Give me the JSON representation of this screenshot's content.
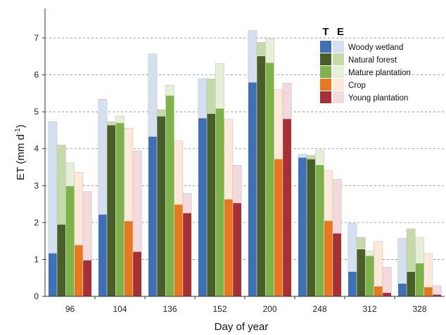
{
  "chart_data": {
    "type": "bar",
    "xlabel": "Day of year",
    "ylabel": "ET (mm d",
    "ylabel_sup": "-1",
    "ylabel_close": ")",
    "ylim": [
      0,
      7.8
    ],
    "yticks": [
      "0",
      "1",
      "2",
      "3",
      "4",
      "5",
      "6",
      "7"
    ],
    "grid": "horizontal dashed",
    "legend_position": "top-right",
    "legend_heads": [
      "T",
      "E"
    ],
    "categories": [
      "96",
      "104",
      "136",
      "152",
      "200",
      "248",
      "312",
      "328"
    ],
    "series": [
      {
        "name": "Woody wetland",
        "colors": {
          "T": "#3f6fb5",
          "E": "#d4e0f0"
        },
        "T": [
          1.17,
          2.22,
          4.33,
          4.83,
          5.8,
          3.76,
          0.67,
          0.35
        ],
        "total": [
          4.73,
          5.34,
          6.57,
          5.9,
          7.2,
          3.85,
          1.98,
          1.57
        ]
      },
      {
        "name": "Natural forest",
        "colors": {
          "T": "#4a5e2a",
          "E": "#c5d9a9"
        },
        "T": [
          1.95,
          4.64,
          4.88,
          4.95,
          6.51,
          3.72,
          1.28,
          0.67
        ],
        "total": [
          4.1,
          4.73,
          5.06,
          5.89,
          6.88,
          3.82,
          1.6,
          1.83
        ]
      },
      {
        "name": "Mature plantation",
        "colors": {
          "T": "#7fb24a",
          "E": "#e6f0d8"
        },
        "T": [
          2.99,
          4.7,
          5.44,
          5.09,
          6.33,
          3.56,
          1.1,
          0.9
        ],
        "total": [
          3.62,
          4.89,
          5.72,
          6.31,
          6.98,
          3.96,
          1.23,
          1.6
        ]
      },
      {
        "name": "Crop",
        "colors": {
          "T": "#e87722",
          "E": "#fde9d9"
        },
        "T": [
          1.39,
          2.04,
          2.49,
          2.63,
          3.72,
          2.05,
          0.27,
          0.25
        ],
        "total": [
          3.36,
          4.56,
          4.21,
          4.8,
          5.6,
          3.41,
          1.49,
          1.16
        ]
      },
      {
        "name": "Young plantation",
        "colors": {
          "T": "#a53035",
          "E": "#f4d9dc"
        },
        "T": [
          0.98,
          1.21,
          2.26,
          2.53,
          4.81,
          1.71,
          0.1,
          0.05
        ],
        "total": [
          2.84,
          3.94,
          2.79,
          3.55,
          5.78,
          3.17,
          0.79,
          0.29
        ]
      }
    ]
  }
}
